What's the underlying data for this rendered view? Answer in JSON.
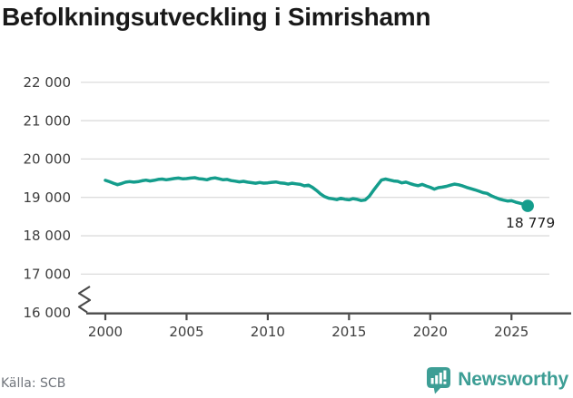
{
  "page": {
    "title": "Befolkningsutveckling i Simrishamn"
  },
  "chart_data": {
    "type": "line",
    "title": "Befolkningsutveckling i Simrishamn",
    "xlabel": "",
    "ylabel": "",
    "grid": "horizontal",
    "axis_break_bottom_left": true,
    "line_color": "#149d8c",
    "ylim": [
      16000,
      22300
    ],
    "xlim": [
      1999.6,
      2027.6
    ],
    "yticks": [
      {
        "value": 22000,
        "label": "22 000"
      },
      {
        "value": 21000,
        "label": "21 000"
      },
      {
        "value": 20000,
        "label": "20 000"
      },
      {
        "value": 19000,
        "label": "19 000"
      },
      {
        "value": 18000,
        "label": "18 000"
      },
      {
        "value": 17000,
        "label": "17 000"
      },
      {
        "value": 16000,
        "label": "16 000"
      }
    ],
    "xticks": [
      {
        "value": 2000,
        "label": "2000"
      },
      {
        "value": 2005,
        "label": "2005"
      },
      {
        "value": 2010,
        "label": "2010"
      },
      {
        "value": 2015,
        "label": "2015"
      },
      {
        "value": 2020,
        "label": "2020"
      },
      {
        "value": 2025,
        "label": "2025"
      }
    ],
    "end_label": "18 779",
    "x": [
      2000.0,
      2000.25,
      2000.5,
      2000.75,
      2001.0,
      2001.25,
      2001.5,
      2001.75,
      2002.0,
      2002.25,
      2002.5,
      2002.75,
      2003.0,
      2003.25,
      2003.5,
      2003.75,
      2004.0,
      2004.25,
      2004.5,
      2004.75,
      2005.0,
      2005.25,
      2005.5,
      2005.75,
      2006.0,
      2006.25,
      2006.5,
      2006.75,
      2007.0,
      2007.25,
      2007.5,
      2007.75,
      2008.0,
      2008.25,
      2008.5,
      2008.75,
      2009.0,
      2009.25,
      2009.5,
      2009.75,
      2010.0,
      2010.25,
      2010.5,
      2010.75,
      2011.0,
      2011.25,
      2011.5,
      2011.75,
      2012.0,
      2012.25,
      2012.5,
      2012.75,
      2013.0,
      2013.25,
      2013.5,
      2013.75,
      2014.0,
      2014.25,
      2014.5,
      2014.75,
      2015.0,
      2015.25,
      2015.5,
      2015.75,
      2016.0,
      2016.25,
      2016.5,
      2016.75,
      2017.0,
      2017.25,
      2017.5,
      2017.75,
      2018.0,
      2018.25,
      2018.5,
      2018.75,
      2019.0,
      2019.25,
      2019.5,
      2019.75,
      2020.0,
      2020.25,
      2020.5,
      2020.75,
      2021.0,
      2021.25,
      2021.5,
      2021.75,
      2022.0,
      2022.25,
      2022.5,
      2022.75,
      2023.0,
      2023.25,
      2023.5,
      2023.75,
      2024.0,
      2024.25,
      2024.5,
      2024.75,
      2025.0,
      2025.25,
      2025.5,
      2025.75,
      2026.0
    ],
    "values": [
      19445,
      19408,
      19368,
      19332,
      19362,
      19396,
      19412,
      19398,
      19410,
      19432,
      19448,
      19428,
      19444,
      19468,
      19478,
      19458,
      19474,
      19492,
      19504,
      19484,
      19490,
      19504,
      19514,
      19488,
      19478,
      19458,
      19494,
      19508,
      19484,
      19458,
      19468,
      19438,
      19424,
      19404,
      19418,
      19398,
      19384,
      19368,
      19388,
      19372,
      19378,
      19392,
      19402,
      19378,
      19368,
      19344,
      19368,
      19352,
      19338,
      19300,
      19318,
      19260,
      19180,
      19090,
      19020,
      18978,
      18962,
      18940,
      18976,
      18950,
      18936,
      18968,
      18948,
      18918,
      18934,
      19030,
      19180,
      19320,
      19452,
      19478,
      19452,
      19428,
      19418,
      19378,
      19398,
      19362,
      19328,
      19304,
      19338,
      19298,
      19262,
      19216,
      19252,
      19268,
      19288,
      19318,
      19344,
      19328,
      19298,
      19258,
      19228,
      19196,
      19160,
      19122,
      19104,
      19042,
      18998,
      18958,
      18930,
      18906,
      18912,
      18878,
      18850,
      18820,
      18779
    ]
  },
  "footer": {
    "source": "Källa: SCB",
    "logo_text": "Newsworthy"
  },
  "colors": {
    "title": "#191919",
    "axis_text": "#3d3d3d",
    "gridline": "#dcdcdc",
    "axis_line": "#4a4a4a",
    "line": "#149d8c",
    "end_label": "#222222",
    "source_text": "#71757c",
    "logo": "#3d9e95"
  }
}
